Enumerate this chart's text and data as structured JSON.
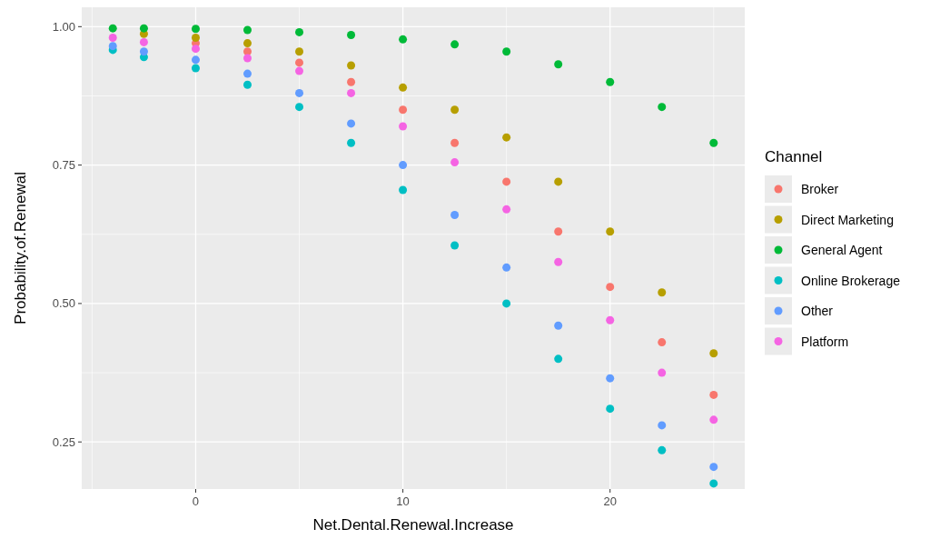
{
  "chart_data": {
    "type": "scatter",
    "xlabel": "Net.Dental.Renewal.Increase",
    "ylabel": "Probability.of.Renewal",
    "legend_title": "Channel",
    "legend": "right",
    "grid": true,
    "marker": "circle",
    "x": [
      -4,
      -2.5,
      0,
      2.5,
      5,
      7.5,
      10,
      12.5,
      15,
      17.5,
      20,
      22.5,
      25
    ],
    "xlim": [
      -5.5,
      26.5
    ],
    "xticks": [
      0,
      10,
      20
    ],
    "ylim": [
      0.165,
      1.035
    ],
    "yticks": [
      {
        "value": 0.25,
        "label": "0.25"
      },
      {
        "value": 0.5,
        "label": "0.50"
      },
      {
        "value": 0.75,
        "label": "0.75"
      },
      {
        "value": 1,
        "label": "1.00"
      }
    ],
    "series": [
      {
        "name": "Broker",
        "color": "#f8766d",
        "values": [
          null,
          null,
          0.97,
          0.955,
          0.935,
          0.9,
          0.85,
          0.79,
          0.72,
          0.63,
          0.53,
          0.43,
          0.335
        ]
      },
      {
        "name": "Direct Marketing",
        "color": "#b79f00",
        "values": [
          null,
          0.987,
          0.98,
          0.97,
          0.955,
          0.93,
          0.89,
          0.85,
          0.8,
          0.72,
          0.63,
          0.52,
          0.41
        ]
      },
      {
        "name": "General Agent",
        "color": "#00ba38",
        "values": [
          0.997,
          0.997,
          0.996,
          0.994,
          0.99,
          0.985,
          0.977,
          0.968,
          0.955,
          0.932,
          0.9,
          0.855,
          0.79
        ]
      },
      {
        "name": "Online Brokerage",
        "color": "#00bfc4",
        "values": [
          0.958,
          0.945,
          0.925,
          0.895,
          0.855,
          0.79,
          0.705,
          0.605,
          0.5,
          0.4,
          0.31,
          0.235,
          0.175
        ]
      },
      {
        "name": "Other",
        "color": "#619cff",
        "values": [
          0.965,
          0.955,
          0.94,
          0.915,
          0.88,
          0.825,
          0.75,
          0.66,
          0.565,
          0.46,
          0.365,
          0.28,
          0.205
        ]
      },
      {
        "name": "Platform",
        "color": "#f564e3",
        "values": [
          0.98,
          0.972,
          0.96,
          0.943,
          0.92,
          0.88,
          0.82,
          0.755,
          0.67,
          0.575,
          0.47,
          0.375,
          0.29
        ]
      }
    ]
  }
}
